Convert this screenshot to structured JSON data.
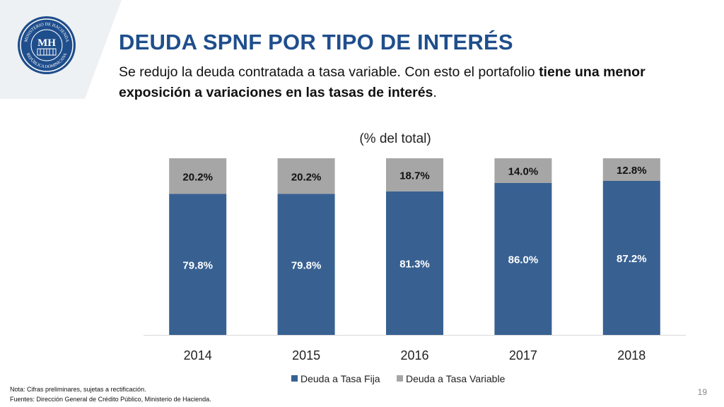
{
  "header": {
    "title": "DEUDA SPNF POR TIPO DE INTERÉS",
    "subtitle_plain_1": "Se redujo la deuda contratada a tasa variable. Con esto el portafolio ",
    "subtitle_bold": "tiene una menor exposición a variaciones en las tasas de interés",
    "subtitle_plain_2": "."
  },
  "logo": {
    "top_text": "MINISTERIO DE HACIENDA",
    "bottom_text": "REPÚBLICA DOMINICANA",
    "monogram": "MH"
  },
  "chart_data": {
    "type": "bar",
    "stacked": true,
    "title": "(% del total)",
    "categories": [
      "2014",
      "2015",
      "2016",
      "2017",
      "2018"
    ],
    "series": [
      {
        "name": "Deuda a Tasa Fija",
        "values": [
          79.8,
          79.8,
          81.3,
          86.0,
          87.2
        ],
        "labels": [
          "79.8%",
          "79.8%",
          "81.3%",
          "86.0%",
          "87.2%"
        ],
        "color": "#386192",
        "label_color": "#ffffff"
      },
      {
        "name": "Deuda a Tasa Variable",
        "values": [
          20.2,
          20.2,
          18.7,
          14.0,
          12.8
        ],
        "labels": [
          "20.2%",
          "20.2%",
          "18.7%",
          "14.0%",
          "12.8%"
        ],
        "color": "#a6a6a6",
        "label_color": "#111111"
      }
    ],
    "ylim": [
      0,
      100
    ],
    "xlabel": "",
    "ylabel": "",
    "legend_position": "bottom"
  },
  "footer": {
    "note": "Nota: Cifras preliminares, sujetas a rectificación.",
    "source": "Fuentes: Dirección General de Crédito Público, Ministerio de Hacienda.",
    "page_number": "19"
  },
  "colors": {
    "title": "#1f4e8c",
    "corner_shape": "#eef1f4",
    "seal_blue": "#1f4e8c"
  }
}
